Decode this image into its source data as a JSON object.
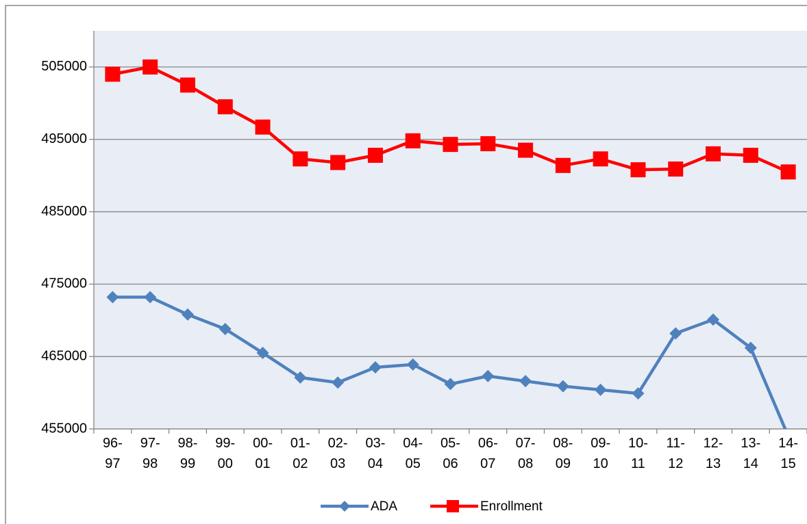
{
  "chart_data": {
    "type": "line",
    "categories": [
      "96-97",
      "97-98",
      "98-99",
      "99-00",
      "00-01",
      "01-02",
      "02-03",
      "03-04",
      "04-05",
      "05-06",
      "06-07",
      "07-08",
      "08-09",
      "09-10",
      "10-11",
      "11-12",
      "12-13",
      "13-14",
      "14-15"
    ],
    "series": [
      {
        "name": "ADA",
        "color": "#4F81BD",
        "marker": "diamond",
        "values": [
          473200,
          473200,
          470800,
          468800,
          465500,
          462100,
          461400,
          463500,
          463900,
          461200,
          462300,
          461600,
          460900,
          460400,
          459900,
          468200,
          470100,
          466200,
          454000
        ]
      },
      {
        "name": "Enrollment",
        "color": "#FF0000",
        "marker": "square",
        "values": [
          504000,
          505000,
          502500,
          499500,
          496700,
          492300,
          491800,
          492800,
          494800,
          494300,
          494400,
          493500,
          491400,
          492300,
          490800,
          490900,
          493000,
          492800,
          490500
        ]
      }
    ],
    "ylim": [
      455000,
      510000
    ],
    "yticks": [
      455000,
      465000,
      475000,
      485000,
      495000,
      505000
    ],
    "grid": true,
    "legend": "bottom"
  }
}
